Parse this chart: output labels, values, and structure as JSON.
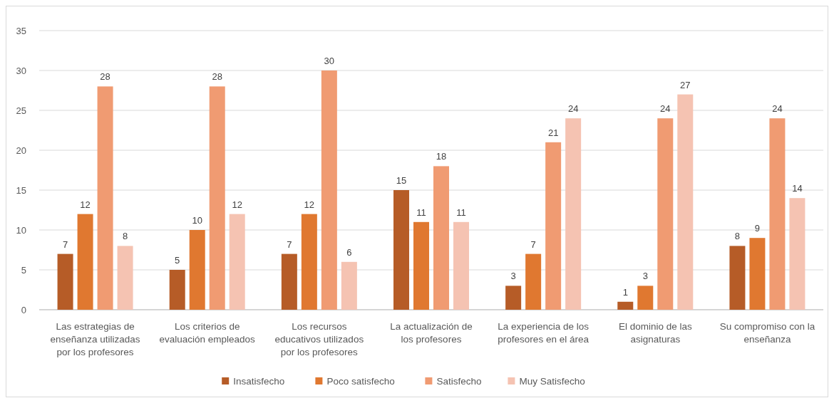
{
  "chart_data": {
    "type": "bar",
    "categories": [
      "Las estrategias de enseñanza utilizadas por los profesores",
      "Los criterios de evaluación empleados",
      "Los recursos educativos utilizados por los profesores",
      "La actualización de los profesores",
      "La experiencia de los profesores en el área",
      "El dominio de las asignaturas",
      "Su compromiso con la enseñanza"
    ],
    "series": [
      {
        "name": "Insatisfecho",
        "color": "#b65c27",
        "values": [
          7,
          5,
          7,
          15,
          3,
          1,
          8
        ]
      },
      {
        "name": "Poco satisfecho",
        "color": "#e07830",
        "values": [
          12,
          10,
          12,
          11,
          7,
          3,
          9
        ]
      },
      {
        "name": "Satisfecho",
        "color": "#f09b72",
        "values": [
          28,
          28,
          30,
          18,
          21,
          24,
          24
        ]
      },
      {
        "name": "Muy Satisfecho",
        "color": "#f5c3b2",
        "values": [
          8,
          12,
          6,
          11,
          24,
          27,
          14
        ]
      }
    ],
    "ylim": [
      0,
      35
    ],
    "yticks": [
      0,
      5,
      10,
      15,
      20,
      25,
      30,
      35
    ],
    "grid": "y",
    "legend": "bottom",
    "data_labels": true
  }
}
